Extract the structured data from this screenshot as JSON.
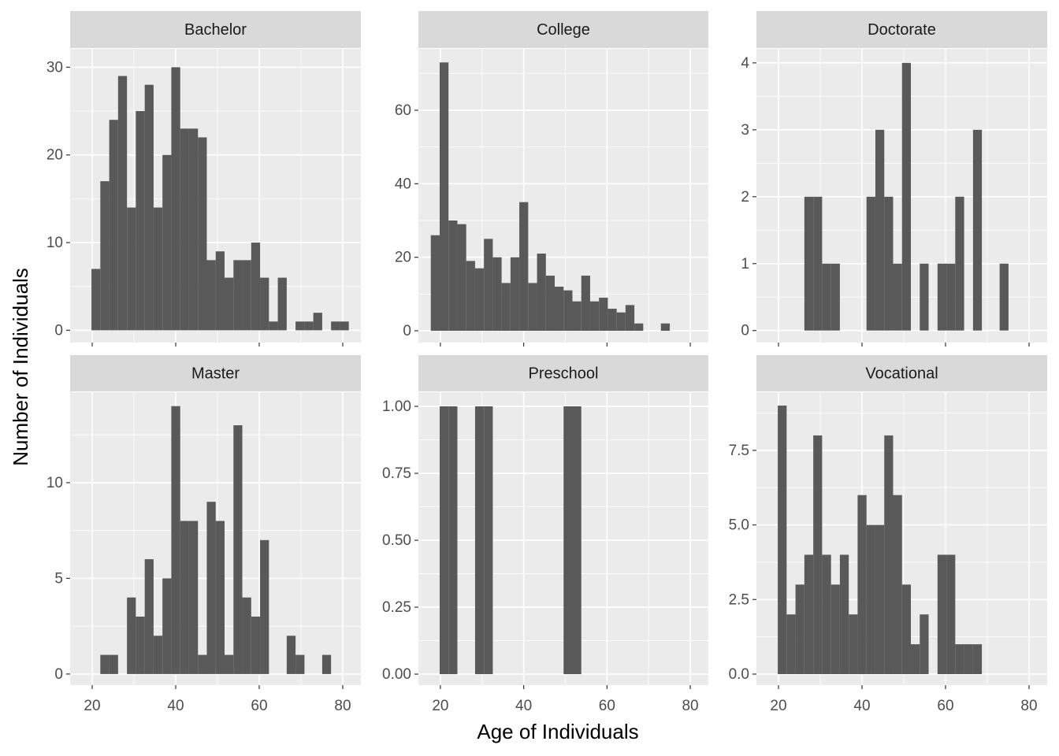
{
  "chart_data": [
    {
      "type": "histogram",
      "title": "Bachelor",
      "color": "#595959",
      "grid": true,
      "bins": [
        17.7,
        19.83,
        21.95,
        24.08,
        26.2,
        28.33,
        30.45,
        32.58,
        34.7,
        36.83,
        38.95,
        41.08,
        43.2,
        45.33,
        47.45,
        49.58,
        51.7,
        53.83,
        55.95,
        58.08,
        60.2,
        62.33,
        64.45,
        66.58,
        68.7,
        70.83,
        72.95,
        75.08,
        77.2,
        79.33,
        81.45
      ],
      "counts": [
        0,
        7,
        17,
        24,
        29,
        14,
        25,
        28,
        14,
        20,
        30,
        23,
        23,
        22,
        8,
        9,
        6,
        8,
        8,
        10,
        6,
        1,
        6,
        0,
        1,
        1,
        2,
        0,
        1,
        1
      ],
      "xlim": [
        14.72,
        84.34
      ],
      "xticks": [
        20,
        40,
        60,
        80
      ],
      "ylim": [
        -1.4,
        32.1
      ],
      "yticks": [
        0,
        10,
        20,
        30
      ]
    },
    {
      "type": "histogram",
      "title": "College",
      "color": "#595959",
      "grid": true,
      "bins": [
        17.7,
        19.83,
        21.95,
        24.08,
        26.2,
        28.33,
        30.45,
        32.58,
        34.7,
        36.83,
        38.95,
        41.08,
        43.2,
        45.33,
        47.45,
        49.58,
        51.7,
        53.83,
        55.95,
        58.08,
        60.2,
        62.33,
        64.45,
        66.58,
        68.7,
        70.83,
        72.95,
        75.08,
        77.2,
        79.33,
        81.45
      ],
      "counts": [
        26,
        73,
        30,
        29,
        19,
        17,
        25,
        20,
        13,
        20,
        35,
        13,
        21,
        15,
        12,
        11,
        8,
        15,
        8,
        9,
        6,
        5,
        7,
        2,
        0,
        0,
        2,
        0,
        0,
        0
      ],
      "xlim": [
        14.72,
        84.34
      ],
      "xticks": [
        20,
        40,
        60,
        80
      ],
      "ylim": [
        -3.2,
        76.7
      ],
      "yticks": [
        0,
        20,
        40,
        60
      ]
    },
    {
      "type": "histogram",
      "title": "Doctorate",
      "color": "#595959",
      "grid": true,
      "bins": [
        17.7,
        19.83,
        21.95,
        24.08,
        26.2,
        28.33,
        30.45,
        32.58,
        34.7,
        36.83,
        38.95,
        41.08,
        43.2,
        45.33,
        47.45,
        49.58,
        51.7,
        53.83,
        55.95,
        58.08,
        60.2,
        62.33,
        64.45,
        66.58,
        68.7,
        70.83,
        72.95,
        75.08,
        77.2,
        79.33,
        81.45
      ],
      "counts": [
        0,
        0,
        0,
        0,
        2,
        2,
        1,
        1,
        0,
        0,
        0,
        2,
        3,
        2,
        1,
        4,
        0,
        1,
        0,
        1,
        1,
        2,
        0,
        3,
        0,
        0,
        1,
        0,
        0,
        0
      ],
      "xlim": [
        14.72,
        84.34
      ],
      "xticks": [
        20,
        40,
        60,
        80
      ],
      "ylim": [
        -0.18,
        4.21
      ],
      "yticks": [
        0,
        1,
        2,
        3,
        4
      ]
    },
    {
      "type": "histogram",
      "title": "Master",
      "color": "#595959",
      "grid": true,
      "bins": [
        17.7,
        19.83,
        21.95,
        24.08,
        26.2,
        28.33,
        30.45,
        32.58,
        34.7,
        36.83,
        38.95,
        41.08,
        43.2,
        45.33,
        47.45,
        49.58,
        51.7,
        53.83,
        55.95,
        58.08,
        60.2,
        62.33,
        64.45,
        66.58,
        68.7,
        70.83,
        72.95,
        75.08,
        77.2,
        79.33,
        81.45
      ],
      "counts": [
        0,
        0,
        1,
        1,
        0,
        4,
        3,
        6,
        2,
        5,
        14,
        8,
        8,
        1,
        9,
        8,
        1,
        13,
        4,
        3,
        7,
        0,
        0,
        2,
        1,
        0,
        0,
        1,
        0,
        0
      ],
      "xlim": [
        14.72,
        84.34
      ],
      "xticks": [
        20,
        40,
        60,
        80
      ],
      "ylim": [
        -0.58,
        14.73
      ],
      "yticks": [
        0,
        5,
        10
      ]
    },
    {
      "type": "histogram",
      "title": "Preschool",
      "color": "#595959",
      "grid": true,
      "bins": [
        17.7,
        19.83,
        21.95,
        24.08,
        26.2,
        28.33,
        30.45,
        32.58,
        34.7,
        36.83,
        38.95,
        41.08,
        43.2,
        45.33,
        47.45,
        49.58,
        51.7,
        53.83,
        55.95,
        58.08,
        60.2,
        62.33,
        64.45,
        66.58,
        68.7,
        70.83,
        72.95,
        75.08,
        77.2,
        79.33,
        81.45
      ],
      "counts": [
        0,
        1,
        1,
        0,
        0,
        1,
        1,
        0,
        0,
        0,
        0,
        0,
        0,
        0,
        0,
        1,
        1,
        0,
        0,
        0,
        0,
        0,
        0,
        0,
        0,
        0,
        0,
        0,
        0,
        0
      ],
      "xlim": [
        14.72,
        84.34
      ],
      "xticks": [
        20,
        40,
        60,
        80
      ],
      "ylim": [
        -0.041,
        1.053
      ],
      "yticks": [
        {
          "value": 0,
          "label": "0.00"
        },
        {
          "value": 0.25,
          "label": "0.25"
        },
        {
          "value": 0.5,
          "label": "0.50"
        },
        {
          "value": 0.75,
          "label": "0.75"
        },
        {
          "value": 1,
          "label": "1.00"
        }
      ]
    },
    {
      "type": "histogram",
      "title": "Vocational",
      "color": "#595959",
      "grid": true,
      "bins": [
        17.7,
        19.83,
        21.95,
        24.08,
        26.2,
        28.33,
        30.45,
        32.58,
        34.7,
        36.83,
        38.95,
        41.08,
        43.2,
        45.33,
        47.45,
        49.58,
        51.7,
        53.83,
        55.95,
        58.08,
        60.2,
        62.33,
        64.45,
        66.58,
        68.7,
        70.83,
        72.95,
        75.08,
        77.2,
        79.33,
        81.45
      ],
      "counts": [
        0,
        9,
        2,
        3,
        4,
        8,
        4,
        3,
        4,
        2,
        6,
        5,
        5,
        8,
        6,
        3,
        1,
        2,
        0,
        4,
        4,
        1,
        1,
        1,
        0,
        0,
        0,
        0,
        0,
        0
      ],
      "xlim": [
        14.72,
        84.34
      ],
      "xticks": [
        20,
        40,
        60,
        80
      ],
      "ylim": [
        -0.37,
        9.45
      ],
      "yticks": [
        {
          "value": 0,
          "label": "0.0"
        },
        {
          "value": 2.5,
          "label": "2.5"
        },
        {
          "value": 5,
          "label": "5.0"
        },
        {
          "value": 7.5,
          "label": "7.5"
        }
      ]
    }
  ],
  "x_label": "Age of Individuals",
  "y_label": "Number of Individuals"
}
